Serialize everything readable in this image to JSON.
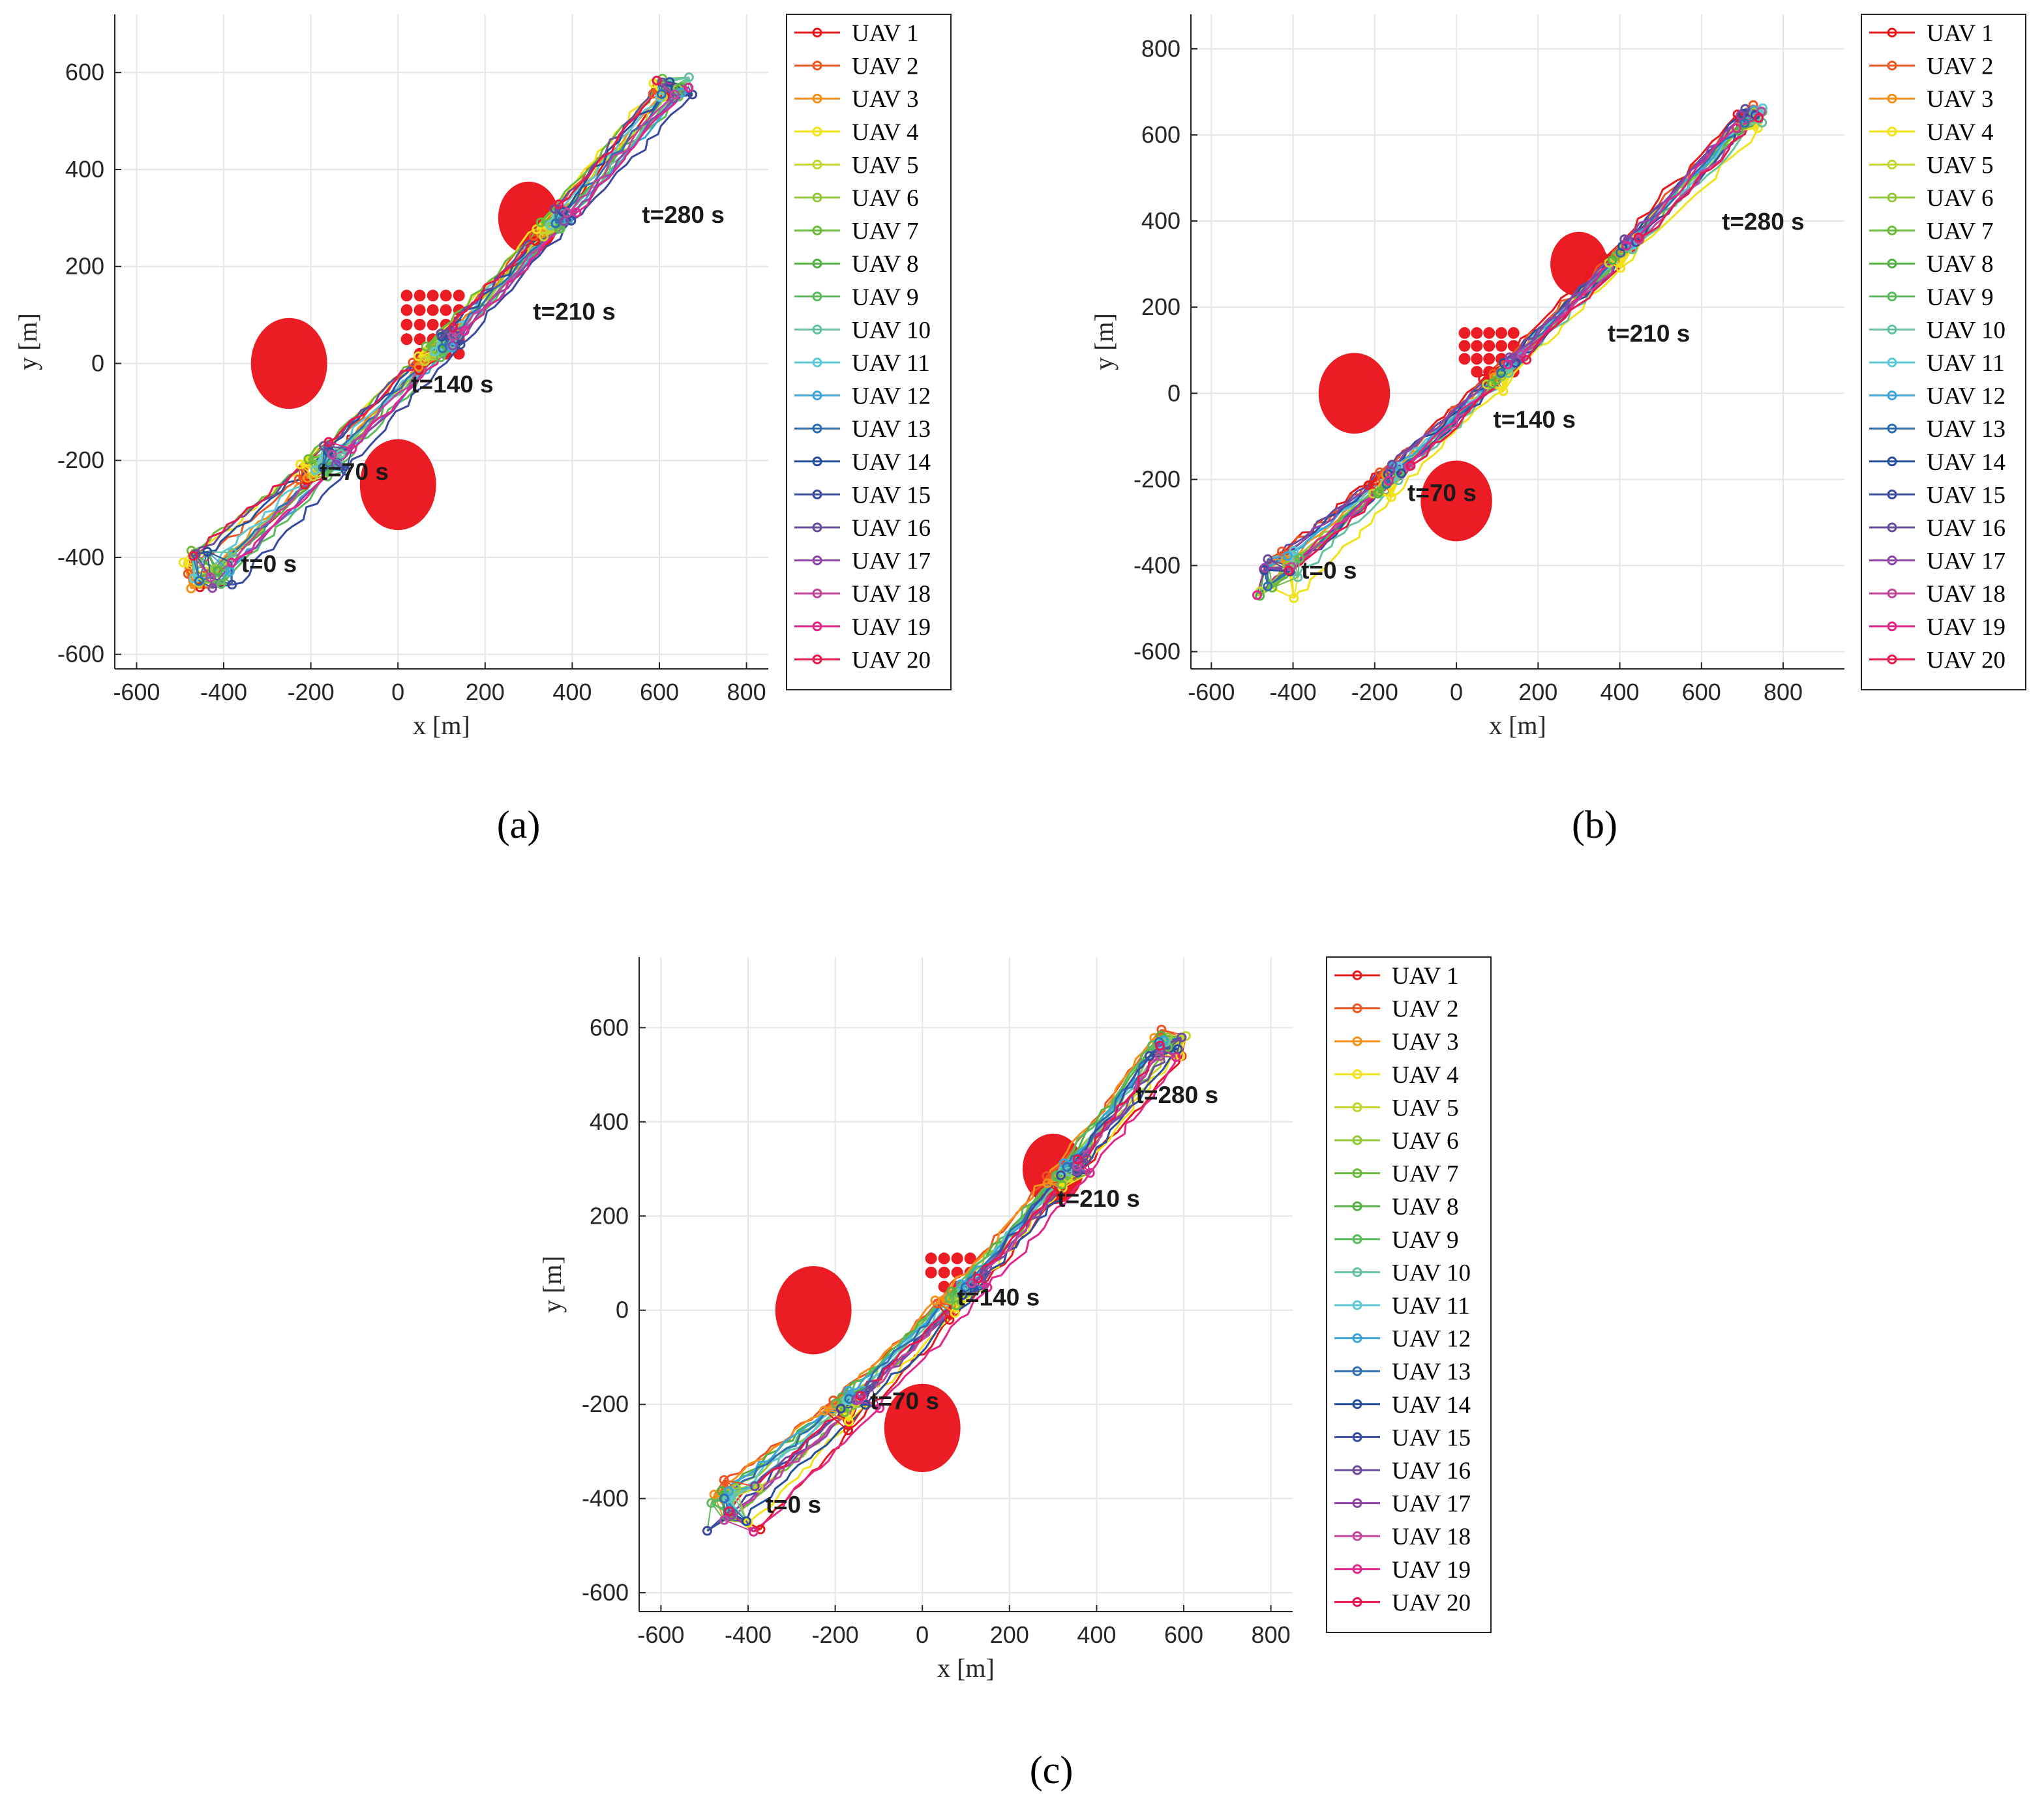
{
  "chart_data": [
    {
      "type": "line",
      "caption": "(a)",
      "xlabel": "x [m]",
      "ylabel": "y [m]",
      "xlim": [
        -650,
        850
      ],
      "ylim": [
        -630,
        720
      ],
      "xticks": [
        -600,
        -400,
        -200,
        0,
        200,
        400,
        600,
        800
      ],
      "yticks": [
        -600,
        -400,
        -200,
        0,
        200,
        400,
        600
      ],
      "grid": true,
      "legend_position": "outside-right",
      "obstacles": [
        {
          "x": -250,
          "y": 0,
          "r": 125
        },
        {
          "x": 0,
          "y": -250,
          "r": 125
        },
        {
          "x": 300,
          "y": 300,
          "r": 100
        }
      ],
      "dot_grid": {
        "x_start": 20,
        "y_start": 140,
        "dx": 30,
        "dy": 30,
        "cols": 5,
        "rows": 5
      },
      "start": {
        "x": -430,
        "y": -420
      },
      "end": {
        "x": 630,
        "y": 570
      },
      "annotations": [
        {
          "text": "t=0 s",
          "x": -360,
          "y": -430
        },
        {
          "text": "t=70 s",
          "x": -180,
          "y": -240
        },
        {
          "text": "t=140 s",
          "x": 30,
          "y": -60
        },
        {
          "text": "t=210 s",
          "x": 310,
          "y": 90
        },
        {
          "text": "t=280 s",
          "x": 560,
          "y": 290
        }
      ]
    },
    {
      "type": "line",
      "caption": "(b)",
      "xlabel": "x [m]",
      "ylabel": "y [m]",
      "xlim": [
        -650,
        950
      ],
      "ylim": [
        -640,
        880
      ],
      "xticks": [
        -600,
        -400,
        -200,
        0,
        200,
        400,
        600,
        800
      ],
      "yticks": [
        -600,
        -400,
        -200,
        0,
        200,
        400,
        600,
        800
      ],
      "grid": true,
      "legend_position": "outside-right",
      "obstacles": [
        {
          "x": -250,
          "y": 0,
          "r": 125
        },
        {
          "x": 0,
          "y": -250,
          "r": 125
        },
        {
          "x": 300,
          "y": 300,
          "r": 100
        }
      ],
      "dot_grid": {
        "x_start": 20,
        "y_start": 140,
        "dx": 30,
        "dy": 30,
        "cols": 5,
        "rows": 4
      },
      "start": {
        "x": -430,
        "y": -420
      },
      "end": {
        "x": 720,
        "y": 640
      },
      "annotations": [
        {
          "text": "t=0 s",
          "x": -380,
          "y": -430
        },
        {
          "text": "t=70 s",
          "x": -120,
          "y": -250
        },
        {
          "text": "t=140 s",
          "x": 90,
          "y": -80
        },
        {
          "text": "t=210 s",
          "x": 370,
          "y": 120
        },
        {
          "text": "t=280 s",
          "x": 650,
          "y": 380
        }
      ]
    },
    {
      "type": "line",
      "caption": "(c)",
      "xlabel": "x [m]",
      "ylabel": "y [m]",
      "xlim": [
        -650,
        850
      ],
      "ylim": [
        -640,
        750
      ],
      "xticks": [
        -600,
        -400,
        -200,
        0,
        200,
        400,
        600,
        800
      ],
      "yticks": [
        -600,
        -400,
        -200,
        0,
        200,
        400,
        600
      ],
      "grid": true,
      "legend_position": "outside-right",
      "obstacles": [
        {
          "x": -250,
          "y": 0,
          "r": 125
        },
        {
          "x": 0,
          "y": -250,
          "r": 125
        },
        {
          "x": 300,
          "y": 300,
          "r": 100
        }
      ],
      "dot_grid": {
        "x_start": 20,
        "y_start": 110,
        "dx": 30,
        "dy": 30,
        "cols": 4,
        "rows": 3
      },
      "start": {
        "x": -430,
        "y": -420
      },
      "end": {
        "x": 560,
        "y": 560
      },
      "annotations": [
        {
          "text": "t=0 s",
          "x": -360,
          "y": -430
        },
        {
          "text": "t=70 s",
          "x": -120,
          "y": -210
        },
        {
          "text": "t=140 s",
          "x": 80,
          "y": 10
        },
        {
          "text": "t=210 s",
          "x": 310,
          "y": 220
        },
        {
          "text": "t=280 s",
          "x": 490,
          "y": 440
        }
      ]
    }
  ],
  "series": [
    {
      "name": "UAV 1",
      "color": "#e41a1c"
    },
    {
      "name": "UAV 2",
      "color": "#ee5522"
    },
    {
      "name": "UAV 3",
      "color": "#f5901a"
    },
    {
      "name": "UAV 4",
      "color": "#f2e21a"
    },
    {
      "name": "UAV 5",
      "color": "#c3d52c"
    },
    {
      "name": "UAV 6",
      "color": "#95c93a"
    },
    {
      "name": "UAV 7",
      "color": "#6cbb3c"
    },
    {
      "name": "UAV 8",
      "color": "#55b046"
    },
    {
      "name": "UAV 9",
      "color": "#5cbb5c"
    },
    {
      "name": "UAV 10",
      "color": "#66c2a0"
    },
    {
      "name": "UAV 11",
      "color": "#5fc8d4"
    },
    {
      "name": "UAV 12",
      "color": "#3ba6d9"
    },
    {
      "name": "UAV 13",
      "color": "#2f6fb0"
    },
    {
      "name": "UAV 14",
      "color": "#27509c"
    },
    {
      "name": "UAV 15",
      "color": "#3a4a9e"
    },
    {
      "name": "UAV 16",
      "color": "#6a4c9c"
    },
    {
      "name": "UAV 17",
      "color": "#8e44a8"
    },
    {
      "name": "UAV 18",
      "color": "#c0479b"
    },
    {
      "name": "UAV 19",
      "color": "#e0288c"
    },
    {
      "name": "UAV 20",
      "color": "#e8174f"
    }
  ],
  "obstacle_color": "#ec1c24"
}
